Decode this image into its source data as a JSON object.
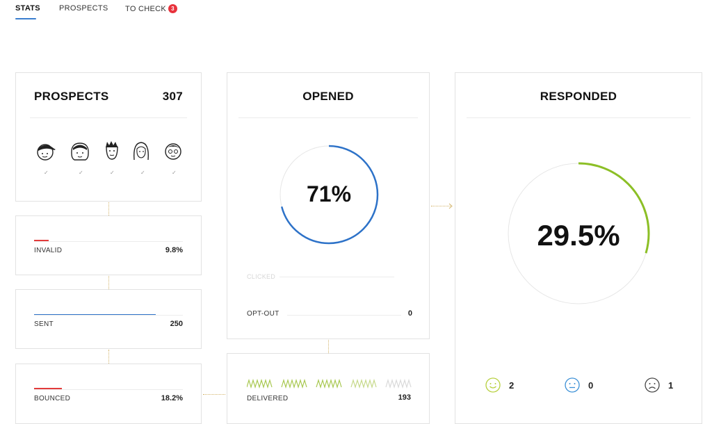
{
  "tabs": [
    {
      "label": "STATS"
    },
    {
      "label": "PROSPECTS"
    },
    {
      "label": "TO CHECK",
      "badge": "3"
    }
  ],
  "prospects": {
    "title": "PROSPECTS",
    "count": "307",
    "avatars": [
      "person-cap-icon",
      "person-bob-icon",
      "person-spiky-icon",
      "person-longhair-icon",
      "person-glasses-icon"
    ],
    "check_mark": "✓"
  },
  "invalid": {
    "label": "INVALID",
    "value": "9.8%",
    "fraction": 0.098
  },
  "sent": {
    "label": "SENT",
    "value": "250",
    "fraction": 0.81
  },
  "bounced": {
    "label": "BOUNCED",
    "value": "18.2%",
    "fraction": 0.182
  },
  "opened": {
    "title": "OPENED",
    "percent_text": "71%",
    "fraction": 0.71,
    "clicked_label": "CLICKED",
    "optout_label": "OPT-OUT",
    "optout_value": "0",
    "color": "#2d72c8"
  },
  "delivered": {
    "label": "DELIVERED",
    "value": "193",
    "color": "#a8c850"
  },
  "responded": {
    "title": "RESPONDED",
    "percent_text": "29.5%",
    "fraction": 0.295,
    "color": "#8cbf26",
    "moods": [
      {
        "icon": "happy-face-icon",
        "count": "2",
        "color": "#b6cf3c"
      },
      {
        "icon": "neutral-face-icon",
        "count": "0",
        "color": "#3a8fd6"
      },
      {
        "icon": "sad-face-icon",
        "count": "1",
        "color": "#444444"
      }
    ]
  },
  "colors": {
    "accent": "#3a7ecf",
    "red": "#e23b3b",
    "blue": "#2d72c8",
    "green": "#8cbf26"
  }
}
